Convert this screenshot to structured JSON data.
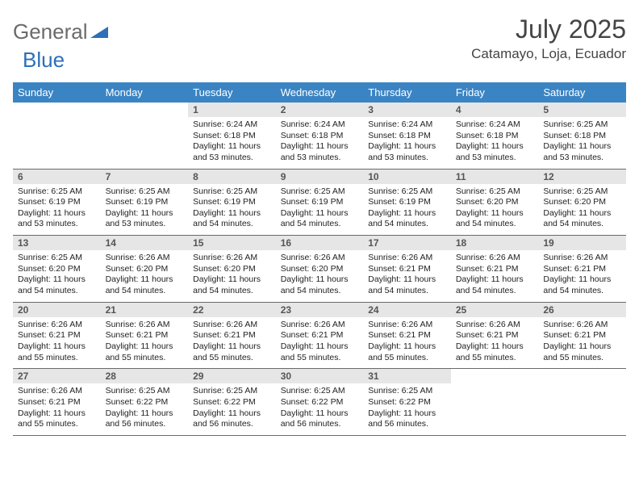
{
  "logo": {
    "textGeneral": "General",
    "textBlue": "Blue",
    "color_general": "#6b6b6b",
    "color_blue": "#2d6fb8",
    "tri_color": "#2d6fb8"
  },
  "header": {
    "month_title": "July 2025",
    "location": "Catamayo, Loja, Ecuador"
  },
  "theme": {
    "header_bg": "#3b84c4",
    "header_fg": "#ffffff",
    "daynum_bg": "#e6e6e6",
    "daynum_fg": "#555555",
    "body_fg": "#222222",
    "border_color": "#6a6a6a",
    "page_bg": "#ffffff",
    "font_size_title": 32,
    "font_size_location": 17,
    "font_size_header": 13,
    "font_size_daynum": 12,
    "font_size_body": 10.5
  },
  "day_names": [
    "Sunday",
    "Monday",
    "Tuesday",
    "Wednesday",
    "Thursday",
    "Friday",
    "Saturday"
  ],
  "weeks": [
    [
      null,
      null,
      {
        "n": "1",
        "sunrise": "Sunrise: 6:24 AM",
        "sunset": "Sunset: 6:18 PM",
        "daylight1": "Daylight: 11 hours",
        "daylight2": "and 53 minutes."
      },
      {
        "n": "2",
        "sunrise": "Sunrise: 6:24 AM",
        "sunset": "Sunset: 6:18 PM",
        "daylight1": "Daylight: 11 hours",
        "daylight2": "and 53 minutes."
      },
      {
        "n": "3",
        "sunrise": "Sunrise: 6:24 AM",
        "sunset": "Sunset: 6:18 PM",
        "daylight1": "Daylight: 11 hours",
        "daylight2": "and 53 minutes."
      },
      {
        "n": "4",
        "sunrise": "Sunrise: 6:24 AM",
        "sunset": "Sunset: 6:18 PM",
        "daylight1": "Daylight: 11 hours",
        "daylight2": "and 53 minutes."
      },
      {
        "n": "5",
        "sunrise": "Sunrise: 6:25 AM",
        "sunset": "Sunset: 6:18 PM",
        "daylight1": "Daylight: 11 hours",
        "daylight2": "and 53 minutes."
      }
    ],
    [
      {
        "n": "6",
        "sunrise": "Sunrise: 6:25 AM",
        "sunset": "Sunset: 6:19 PM",
        "daylight1": "Daylight: 11 hours",
        "daylight2": "and 53 minutes."
      },
      {
        "n": "7",
        "sunrise": "Sunrise: 6:25 AM",
        "sunset": "Sunset: 6:19 PM",
        "daylight1": "Daylight: 11 hours",
        "daylight2": "and 53 minutes."
      },
      {
        "n": "8",
        "sunrise": "Sunrise: 6:25 AM",
        "sunset": "Sunset: 6:19 PM",
        "daylight1": "Daylight: 11 hours",
        "daylight2": "and 54 minutes."
      },
      {
        "n": "9",
        "sunrise": "Sunrise: 6:25 AM",
        "sunset": "Sunset: 6:19 PM",
        "daylight1": "Daylight: 11 hours",
        "daylight2": "and 54 minutes."
      },
      {
        "n": "10",
        "sunrise": "Sunrise: 6:25 AM",
        "sunset": "Sunset: 6:19 PM",
        "daylight1": "Daylight: 11 hours",
        "daylight2": "and 54 minutes."
      },
      {
        "n": "11",
        "sunrise": "Sunrise: 6:25 AM",
        "sunset": "Sunset: 6:20 PM",
        "daylight1": "Daylight: 11 hours",
        "daylight2": "and 54 minutes."
      },
      {
        "n": "12",
        "sunrise": "Sunrise: 6:25 AM",
        "sunset": "Sunset: 6:20 PM",
        "daylight1": "Daylight: 11 hours",
        "daylight2": "and 54 minutes."
      }
    ],
    [
      {
        "n": "13",
        "sunrise": "Sunrise: 6:25 AM",
        "sunset": "Sunset: 6:20 PM",
        "daylight1": "Daylight: 11 hours",
        "daylight2": "and 54 minutes."
      },
      {
        "n": "14",
        "sunrise": "Sunrise: 6:26 AM",
        "sunset": "Sunset: 6:20 PM",
        "daylight1": "Daylight: 11 hours",
        "daylight2": "and 54 minutes."
      },
      {
        "n": "15",
        "sunrise": "Sunrise: 6:26 AM",
        "sunset": "Sunset: 6:20 PM",
        "daylight1": "Daylight: 11 hours",
        "daylight2": "and 54 minutes."
      },
      {
        "n": "16",
        "sunrise": "Sunrise: 6:26 AM",
        "sunset": "Sunset: 6:20 PM",
        "daylight1": "Daylight: 11 hours",
        "daylight2": "and 54 minutes."
      },
      {
        "n": "17",
        "sunrise": "Sunrise: 6:26 AM",
        "sunset": "Sunset: 6:21 PM",
        "daylight1": "Daylight: 11 hours",
        "daylight2": "and 54 minutes."
      },
      {
        "n": "18",
        "sunrise": "Sunrise: 6:26 AM",
        "sunset": "Sunset: 6:21 PM",
        "daylight1": "Daylight: 11 hours",
        "daylight2": "and 54 minutes."
      },
      {
        "n": "19",
        "sunrise": "Sunrise: 6:26 AM",
        "sunset": "Sunset: 6:21 PM",
        "daylight1": "Daylight: 11 hours",
        "daylight2": "and 54 minutes."
      }
    ],
    [
      {
        "n": "20",
        "sunrise": "Sunrise: 6:26 AM",
        "sunset": "Sunset: 6:21 PM",
        "daylight1": "Daylight: 11 hours",
        "daylight2": "and 55 minutes."
      },
      {
        "n": "21",
        "sunrise": "Sunrise: 6:26 AM",
        "sunset": "Sunset: 6:21 PM",
        "daylight1": "Daylight: 11 hours",
        "daylight2": "and 55 minutes."
      },
      {
        "n": "22",
        "sunrise": "Sunrise: 6:26 AM",
        "sunset": "Sunset: 6:21 PM",
        "daylight1": "Daylight: 11 hours",
        "daylight2": "and 55 minutes."
      },
      {
        "n": "23",
        "sunrise": "Sunrise: 6:26 AM",
        "sunset": "Sunset: 6:21 PM",
        "daylight1": "Daylight: 11 hours",
        "daylight2": "and 55 minutes."
      },
      {
        "n": "24",
        "sunrise": "Sunrise: 6:26 AM",
        "sunset": "Sunset: 6:21 PM",
        "daylight1": "Daylight: 11 hours",
        "daylight2": "and 55 minutes."
      },
      {
        "n": "25",
        "sunrise": "Sunrise: 6:26 AM",
        "sunset": "Sunset: 6:21 PM",
        "daylight1": "Daylight: 11 hours",
        "daylight2": "and 55 minutes."
      },
      {
        "n": "26",
        "sunrise": "Sunrise: 6:26 AM",
        "sunset": "Sunset: 6:21 PM",
        "daylight1": "Daylight: 11 hours",
        "daylight2": "and 55 minutes."
      }
    ],
    [
      {
        "n": "27",
        "sunrise": "Sunrise: 6:26 AM",
        "sunset": "Sunset: 6:21 PM",
        "daylight1": "Daylight: 11 hours",
        "daylight2": "and 55 minutes."
      },
      {
        "n": "28",
        "sunrise": "Sunrise: 6:25 AM",
        "sunset": "Sunset: 6:22 PM",
        "daylight1": "Daylight: 11 hours",
        "daylight2": "and 56 minutes."
      },
      {
        "n": "29",
        "sunrise": "Sunrise: 6:25 AM",
        "sunset": "Sunset: 6:22 PM",
        "daylight1": "Daylight: 11 hours",
        "daylight2": "and 56 minutes."
      },
      {
        "n": "30",
        "sunrise": "Sunrise: 6:25 AM",
        "sunset": "Sunset: 6:22 PM",
        "daylight1": "Daylight: 11 hours",
        "daylight2": "and 56 minutes."
      },
      {
        "n": "31",
        "sunrise": "Sunrise: 6:25 AM",
        "sunset": "Sunset: 6:22 PM",
        "daylight1": "Daylight: 11 hours",
        "daylight2": "and 56 minutes."
      },
      null,
      null
    ]
  ]
}
